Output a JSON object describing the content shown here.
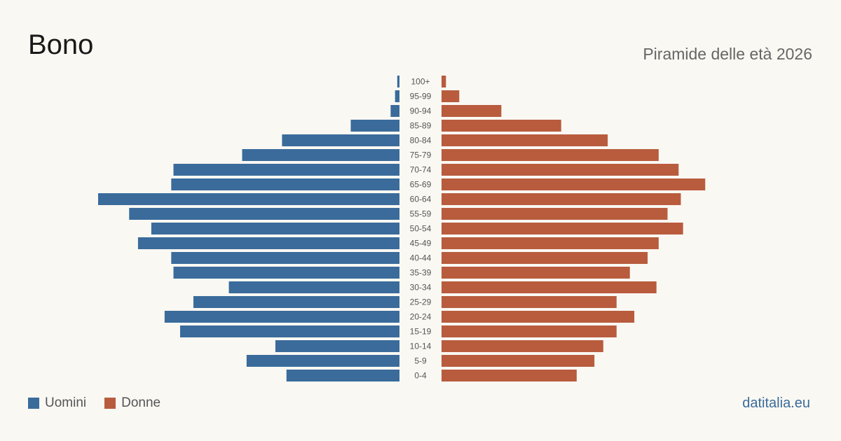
{
  "title": "Bono",
  "subtitle": "Piramide delle età 2026",
  "site": "datitalia.eu",
  "colors": {
    "men": "#3a6b9b",
    "women": "#b85c3d",
    "label": "#555555"
  },
  "legend": [
    {
      "label": "Uomini",
      "color": "#3a6b9b"
    },
    {
      "label": "Donne",
      "color": "#b85c3d"
    }
  ],
  "chart_data": {
    "type": "bar",
    "orientation": "horizontal-pyramid",
    "categories": [
      "100+",
      "95-99",
      "90-94",
      "85-89",
      "80-84",
      "75-79",
      "70-74",
      "65-69",
      "60-64",
      "55-59",
      "50-54",
      "45-49",
      "40-44",
      "35-39",
      "30-34",
      "25-29",
      "20-24",
      "15-19",
      "10-14",
      "5-9",
      "0-4"
    ],
    "series": [
      {
        "name": "Uomini",
        "values": [
          1,
          2,
          4,
          22,
          53,
          71,
          102,
          103,
          136,
          122,
          112,
          118,
          103,
          102,
          77,
          93,
          106,
          99,
          56,
          69,
          51
        ]
      },
      {
        "name": "Donne",
        "values": [
          2,
          8,
          27,
          54,
          75,
          98,
          107,
          119,
          108,
          102,
          109,
          98,
          93,
          85,
          97,
          79,
          87,
          79,
          73,
          69,
          61
        ]
      }
    ],
    "legend": "bottom-left",
    "grid": false
  }
}
